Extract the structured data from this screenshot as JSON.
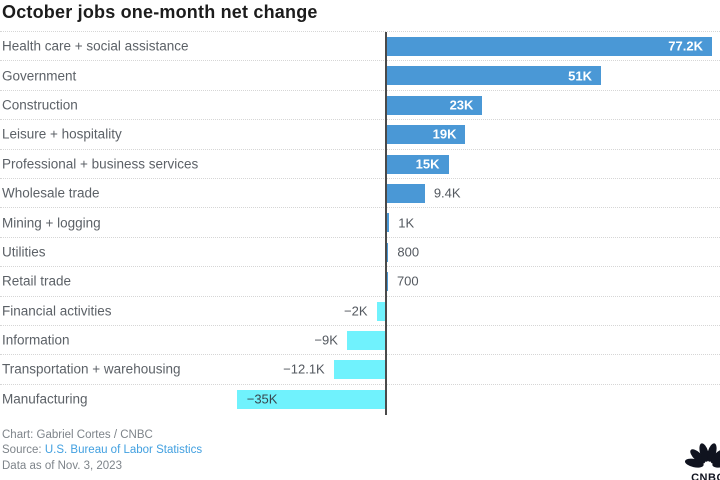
{
  "chart_data": {
    "type": "bar",
    "orientation": "horizontal",
    "title": "October jobs one-month net change",
    "categories": [
      "Health care + social assistance",
      "Government",
      "Construction",
      "Leisure + hospitality",
      "Professional + business services",
      "Wholesale trade",
      "Mining + logging",
      "Utilities",
      "Retail trade",
      "Financial activities",
      "Information",
      "Transportation + warehousing",
      "Manufacturing"
    ],
    "values": [
      77200,
      51000,
      23000,
      19000,
      15000,
      9400,
      1000,
      800,
      700,
      -2000,
      -9000,
      -12100,
      -35000
    ],
    "value_labels": [
      "77.2K",
      "51K",
      "23K",
      "19K",
      "15K",
      "9.4K",
      "1K",
      "800",
      "700",
      "−2K",
      "−9K",
      "−12.1K",
      "−35K"
    ],
    "unit": "jobs",
    "xlim": [
      -40700,
      79200
    ],
    "baseline": 0,
    "grid": "dotted row separators, no axis ticks",
    "legend": "none",
    "bar_colors": {
      "positive": "#4a98d6",
      "negative": "#70f2fd"
    }
  },
  "footer": {
    "credit": "Chart: Gabriel Cortes / CNBC",
    "source_label": "Source:",
    "source_link": "U.S. Bureau of Labor Statistics",
    "as_of": "Data as of Nov. 3, 2023"
  },
  "branding": {
    "logo_text": "CNBC"
  },
  "colors": {
    "title": "#1c1c1c",
    "category_label": "#5c6167",
    "value_label_outside": "#53585f",
    "value_label_inside_positive": "#ffffff",
    "value_label_inside_negative": "#37474f",
    "positive_bar": "#4a98d6",
    "negative_bar": "#70f2fd",
    "zero_line": "#4a4a4a",
    "separator": "#d6d6d6",
    "footer_text": "#7e848a",
    "source_link": "#42a0e0",
    "logo": "#10131f"
  }
}
